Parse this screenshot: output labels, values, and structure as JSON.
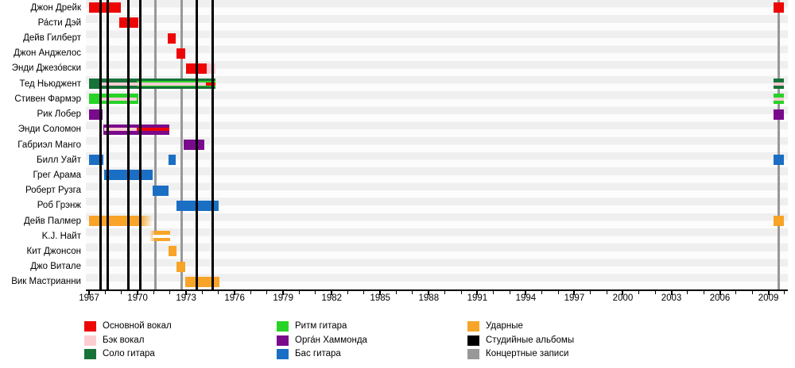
{
  "chart_data": {
    "type": "timeline",
    "title": "",
    "axis": {
      "year_min": 1966.8,
      "year_max": 2010.2,
      "tick_first": 1967,
      "tick_last": 2010,
      "label_step": 3,
      "tick_labels": [
        "1967",
        "1970",
        "1973",
        "1976",
        "1979",
        "1982",
        "1985",
        "1988",
        "1991",
        "1994",
        "1997",
        "2000",
        "2003",
        "2006",
        "2009"
      ]
    },
    "roles": {
      "lead_vocals": {
        "label": "Основной вокал",
        "color": "#ee0505"
      },
      "backing_vocals": {
        "label": "Бэк вокал",
        "color": "#fcccd3"
      },
      "lead_guitar": {
        "label": "Соло гитара",
        "color": "#177239"
      },
      "rhythm_guitar": {
        "label": "Ритм гитара",
        "color": "#27d327"
      },
      "organ": {
        "label": "Орга́н Хаммонда",
        "color": "#7a0a8c"
      },
      "bass": {
        "label": "Бас гитара",
        "color": "#1a6fc4"
      },
      "drums": {
        "label": "Ударные",
        "color": "#f7a428"
      },
      "studio_albums": {
        "label": "Студийные альбомы",
        "color": "#000000"
      },
      "live_albums": {
        "label": "Концертные записи",
        "color": "#989898"
      },
      "white_stripe": {
        "label": "",
        "color": "#ffffff"
      }
    },
    "legend_columns": [
      [
        "lead_vocals",
        "backing_vocals",
        "lead_guitar"
      ],
      [
        "rhythm_guitar",
        "organ",
        "bass"
      ],
      [
        "drums",
        "studio_albums",
        "live_albums"
      ]
    ],
    "albums": {
      "studio": [
        1967.71,
        1968.15,
        1969.45,
        1970.18,
        1973.68,
        1974.66
      ],
      "live": [
        1971.09,
        1972.7,
        2009.62
      ]
    },
    "members": [
      {
        "name": "Джон Дрейк",
        "bars": [
          {
            "from": 1967.0,
            "to": 1968.95,
            "role": "lead_vocals",
            "layer": "base"
          },
          {
            "from": 2009.3,
            "to": 2009.95,
            "role": "lead_vocals",
            "layer": "base"
          }
        ]
      },
      {
        "name": "Ра́сти Дэй",
        "bars": [
          {
            "from": 1968.85,
            "to": 1970.05,
            "role": "lead_vocals",
            "layer": "base"
          }
        ]
      },
      {
        "name": "Дейв Гилберт",
        "bars": [
          {
            "from": 1971.85,
            "to": 1972.35,
            "role": "lead_vocals",
            "layer": "base"
          }
        ]
      },
      {
        "name": "Джон Анджелос",
        "bars": [
          {
            "from": 1972.4,
            "to": 1972.95,
            "role": "lead_vocals",
            "layer": "base"
          }
        ]
      },
      {
        "name": "Энди Джезо́вски",
        "bars": [
          {
            "from": 1973.0,
            "to": 1974.25,
            "role": "lead_vocals",
            "layer": "base"
          },
          {
            "from": 1974.25,
            "to": 1974.8,
            "role": "backing_vocals",
            "layer": "base"
          }
        ]
      },
      {
        "name": "Тед Ньюджент",
        "bars": [
          {
            "from": 1967.0,
            "to": 1974.8,
            "role": "lead_guitar",
            "layer": "base"
          },
          {
            "from": 1969.95,
            "to": 1974.8,
            "role": "rhythm_guitar",
            "layer": "mid"
          },
          {
            "from": 1967.8,
            "to": 1974.2,
            "role": "backing_vocals",
            "layer": "center"
          },
          {
            "from": 1974.2,
            "to": 1974.8,
            "role": "lead_vocals",
            "layer": "center"
          },
          {
            "from": 2009.3,
            "to": 2009.95,
            "role": "lead_guitar",
            "layer": "base"
          },
          {
            "from": 2009.3,
            "to": 2009.95,
            "role": "backing_vocals",
            "layer": "center"
          }
        ]
      },
      {
        "name": "Стивен Фармэр",
        "bars": [
          {
            "from": 1967.0,
            "to": 1970.05,
            "role": "rhythm_guitar",
            "layer": "base"
          },
          {
            "from": 1967.8,
            "to": 1969.95,
            "role": "backing_vocals",
            "layer": "center"
          },
          {
            "from": 2009.3,
            "to": 2009.95,
            "role": "rhythm_guitar",
            "layer": "base"
          },
          {
            "from": 2009.3,
            "to": 2009.95,
            "role": "backing_vocals",
            "layer": "center"
          }
        ]
      },
      {
        "name": "Рик Лобер",
        "bars": [
          {
            "from": 1967.0,
            "to": 1967.85,
            "role": "organ",
            "layer": "base"
          },
          {
            "from": 2009.3,
            "to": 2009.95,
            "role": "organ",
            "layer": "base"
          }
        ]
      },
      {
        "name": "Энди Соломон",
        "bars": [
          {
            "from": 1967.9,
            "to": 1971.95,
            "role": "organ",
            "layer": "base"
          },
          {
            "from": 1967.95,
            "to": 1969.95,
            "role": "backing_vocals",
            "layer": "center"
          },
          {
            "from": 1969.95,
            "to": 1971.95,
            "role": "lead_vocals",
            "layer": "center"
          }
        ]
      },
      {
        "name": "Габриэл Манго",
        "bars": [
          {
            "from": 1972.85,
            "to": 1974.1,
            "role": "organ",
            "layer": "base"
          }
        ]
      },
      {
        "name": "Билл Уайт",
        "bars": [
          {
            "from": 1967.0,
            "to": 1967.9,
            "role": "bass",
            "layer": "base"
          },
          {
            "from": 1971.9,
            "to": 1972.35,
            "role": "bass",
            "layer": "base"
          },
          {
            "from": 2009.3,
            "to": 2009.95,
            "role": "bass",
            "layer": "base"
          }
        ]
      },
      {
        "name": "Грег Арама",
        "bars": [
          {
            "from": 1967.95,
            "to": 1970.95,
            "role": "bass",
            "layer": "base"
          }
        ]
      },
      {
        "name": "Роберт Рузга",
        "bars": [
          {
            "from": 1970.95,
            "to": 1971.9,
            "role": "bass",
            "layer": "base"
          }
        ]
      },
      {
        "name": "Роб Грэнж",
        "bars": [
          {
            "from": 1972.4,
            "to": 1975.0,
            "role": "bass",
            "layer": "base"
          }
        ]
      },
      {
        "name": "Дейв Палмер",
        "bars": [
          {
            "from": 1967.0,
            "to": 1970.95,
            "role": "drums",
            "layer": "base",
            "fade": "right"
          },
          {
            "from": 2009.3,
            "to": 2009.95,
            "role": "drums",
            "layer": "base"
          }
        ]
      },
      {
        "name": "K.J. Найт",
        "bars": [
          {
            "from": 1970.75,
            "to": 1972.0,
            "role": "drums",
            "layer": "base",
            "fade": "left"
          },
          {
            "from": 1970.95,
            "to": 1972.0,
            "role": "white_stripe",
            "layer": "center"
          }
        ]
      },
      {
        "name": "Кит Джонсон",
        "bars": [
          {
            "from": 1971.9,
            "to": 1972.4,
            "role": "drums",
            "layer": "base"
          }
        ]
      },
      {
        "name": "Джо Витале",
        "bars": [
          {
            "from": 1972.4,
            "to": 1972.95,
            "role": "drums",
            "layer": "base"
          }
        ]
      },
      {
        "name": "Вик Мастрианни",
        "bars": [
          {
            "from": 1972.95,
            "to": 1975.05,
            "role": "drums",
            "layer": "base"
          }
        ]
      }
    ]
  }
}
